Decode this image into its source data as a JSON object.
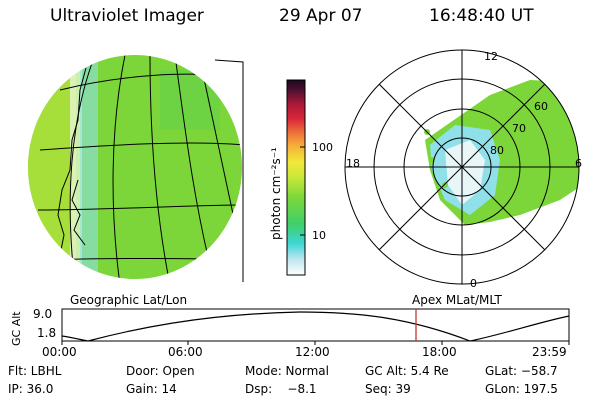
{
  "header": {
    "instrument": "Ultraviolet Imager",
    "date": "29 Apr 07",
    "time": "16:48:40 UT"
  },
  "colorbar": {
    "label": "photon cm⁻²s⁻¹",
    "ticks": [
      "100",
      "10"
    ]
  },
  "polar": {
    "clock_labels": [
      "12",
      "18",
      "6",
      "0"
    ],
    "lat_labels": [
      "60",
      "70",
      "80"
    ]
  },
  "panel_labels": {
    "left": "Geographic Lat/Lon",
    "right": "Apex MLat/MLT"
  },
  "altitude_plot": {
    "ylabel": "GC Alt",
    "yticks": [
      "9.0",
      "1.8"
    ],
    "xticks": [
      "00:00",
      "06:00",
      "12:00",
      "18:00",
      "23:59"
    ],
    "marker_color": "#c0392b"
  },
  "info": {
    "row1": {
      "flt": "Flt: LBHL",
      "door": "Door: Open",
      "mode": "Mode: Normal",
      "gcalt": "GC Alt: 5.4 Re",
      "glat": "GLat: −58.7"
    },
    "row2": {
      "ip": "IP: 36.0",
      "gain": "Gain: 14",
      "dsp": "Dsp:    −8.1",
      "seq": "Seq: 39",
      "glon": "GLon: 197.5"
    }
  },
  "colors": {
    "image_green": "#7cd63a",
    "image_cyan": "#8fe0e8",
    "image_white": "#e8f6f8"
  }
}
